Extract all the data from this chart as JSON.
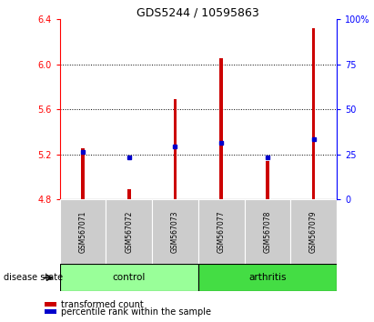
{
  "title": "GDS5244 / 10595863",
  "samples": [
    "GSM567071",
    "GSM567072",
    "GSM567073",
    "GSM567077",
    "GSM567078",
    "GSM567079"
  ],
  "groups": [
    "control",
    "control",
    "control",
    "arthritis",
    "arthritis",
    "arthritis"
  ],
  "bar_top": [
    5.255,
    4.895,
    5.695,
    6.055,
    5.145,
    6.325
  ],
  "bar_bottom": 4.8,
  "blue_y": [
    5.22,
    5.175,
    5.275,
    5.305,
    5.175,
    5.335
  ],
  "ylim": [
    4.8,
    6.4
  ],
  "yticks_left": [
    4.8,
    5.2,
    5.6,
    6.0,
    6.4
  ],
  "yticks_right": [
    0,
    25,
    50,
    75,
    100
  ],
  "right_ylim": [
    0,
    100
  ],
  "bar_color": "#cc0000",
  "blue_color": "#0000cc",
  "control_color": "#99ff99",
  "arthritis_color": "#44dd44",
  "tick_bg_color": "#cccccc",
  "group_label": "disease state",
  "legend_items": [
    "transformed count",
    "percentile rank within the sample"
  ],
  "bar_width": 0.07
}
